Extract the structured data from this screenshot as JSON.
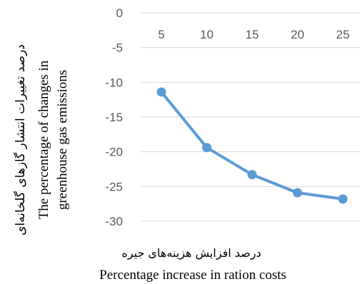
{
  "chart_data": {
    "type": "line",
    "x": [
      5,
      10,
      15,
      20,
      25
    ],
    "values": [
      -11.4,
      -19.4,
      -23.3,
      -25.9,
      -26.8
    ],
    "ylim": [
      -30,
      0
    ],
    "yticks": [
      "0",
      "-5",
      "-10",
      "-15",
      "-20",
      "-25",
      "-30"
    ],
    "xticks": [
      "5",
      "10",
      "15",
      "20",
      "25"
    ],
    "xaxis_position": "top",
    "ylabel_fa": "درصد تغییرات انتشار گازهای گلخانه‌ای",
    "ylabel_en_line1": "The percentage of changes in",
    "ylabel_en_line2": "greenhouse gas emissions",
    "xlabel_fa": "درصد افزایش هزینه‌های جیره",
    "xlabel_en": "Percentage increase in ration costs",
    "grid": true,
    "line_color": "#5b9bd5",
    "grid_color": "#d9d9d9",
    "tick_color": "#595959"
  }
}
